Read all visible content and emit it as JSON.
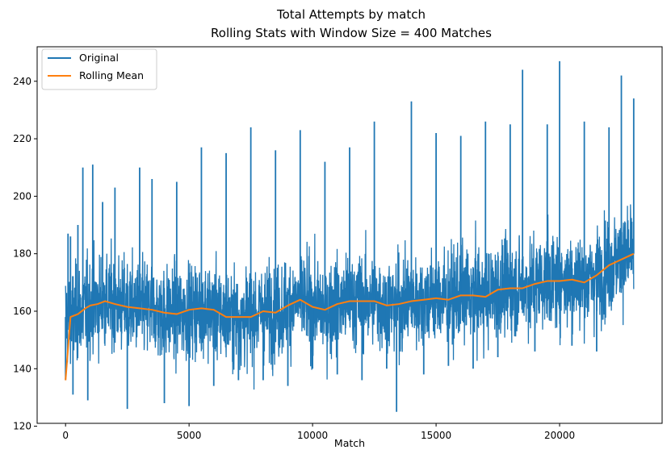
{
  "chart_data": {
    "type": "line",
    "title": "Total Attempts by match",
    "subtitle": "Rolling Stats with Window Size = 400 Matches",
    "xlabel": "Match",
    "ylabel": "",
    "xlim": [
      -1150,
      24150
    ],
    "ylim": [
      121,
      252
    ],
    "x_ticks": [
      0,
      5000,
      10000,
      15000,
      20000
    ],
    "x_tick_labels": [
      "0",
      "5000",
      "10000",
      "15000",
      "20000"
    ],
    "y_ticks": [
      120,
      140,
      160,
      180,
      200,
      220,
      240
    ],
    "y_tick_labels": [
      "120",
      "140",
      "160",
      "180",
      "200",
      "220",
      "240"
    ],
    "legend": {
      "position": "upper-left",
      "entries": [
        "Original",
        "Rolling Mean"
      ]
    },
    "colors": {
      "original": "#1f77b4",
      "rolling_mean": "#ff7f0e"
    },
    "series": [
      {
        "name": "Original",
        "color": "#1f77b4",
        "note_values": "noisy per-match series; representative points and visible spikes",
        "x": [
          0,
          100,
          200,
          300,
          500,
          700,
          900,
          1100,
          1500,
          2000,
          2500,
          3000,
          3500,
          4000,
          4500,
          5000,
          5500,
          6000,
          6500,
          7000,
          7500,
          8000,
          8500,
          9000,
          9500,
          10000,
          10500,
          11000,
          11500,
          12000,
          12500,
          13000,
          13400,
          14000,
          14500,
          15000,
          15500,
          16000,
          16500,
          17000,
          17500,
          18000,
          18500,
          19000,
          19500,
          20000,
          20500,
          21000,
          21500,
          22000,
          22500,
          23000
        ],
        "y": [
          136,
          187,
          186,
          131,
          190,
          210,
          129,
          211,
          198,
          203,
          126,
          210,
          206,
          128,
          205,
          127,
          217,
          134,
          215,
          136,
          224,
          136,
          216,
          134,
          223,
          140,
          212,
          138,
          217,
          136,
          226,
          140,
          125,
          233,
          138,
          222,
          141,
          221,
          140,
          226,
          144,
          225,
          244,
          146,
          225,
          247,
          148,
          226,
          146,
          224,
          242,
          234
        ]
      },
      {
        "name": "Rolling Mean",
        "color": "#ff7f0e",
        "x": [
          0,
          200,
          500,
          800,
          1000,
          1300,
          1600,
          2000,
          2500,
          3000,
          3500,
          4000,
          4500,
          5000,
          5500,
          6000,
          6500,
          7000,
          7500,
          8000,
          8500,
          9000,
          9500,
          10000,
          10500,
          11000,
          11500,
          12000,
          12500,
          13000,
          13500,
          14000,
          14500,
          15000,
          15500,
          16000,
          16500,
          17000,
          17500,
          18000,
          18500,
          19000,
          19500,
          20000,
          20500,
          21000,
          21500,
          22000,
          22500,
          23000
        ],
        "y": [
          136,
          158,
          159,
          161,
          162,
          162.5,
          163.5,
          162.5,
          161.5,
          161,
          160.5,
          159.5,
          159,
          160.5,
          161,
          160.5,
          158,
          158,
          158,
          160,
          159.5,
          162,
          164,
          161.5,
          160.5,
          162.5,
          163.5,
          163.5,
          163.5,
          162,
          162.5,
          163.5,
          164,
          164.5,
          164,
          165.5,
          165.5,
          165,
          167.5,
          168,
          168,
          169.5,
          170.5,
          170.5,
          171,
          170,
          172.5,
          176,
          178,
          180
        ]
      }
    ]
  }
}
